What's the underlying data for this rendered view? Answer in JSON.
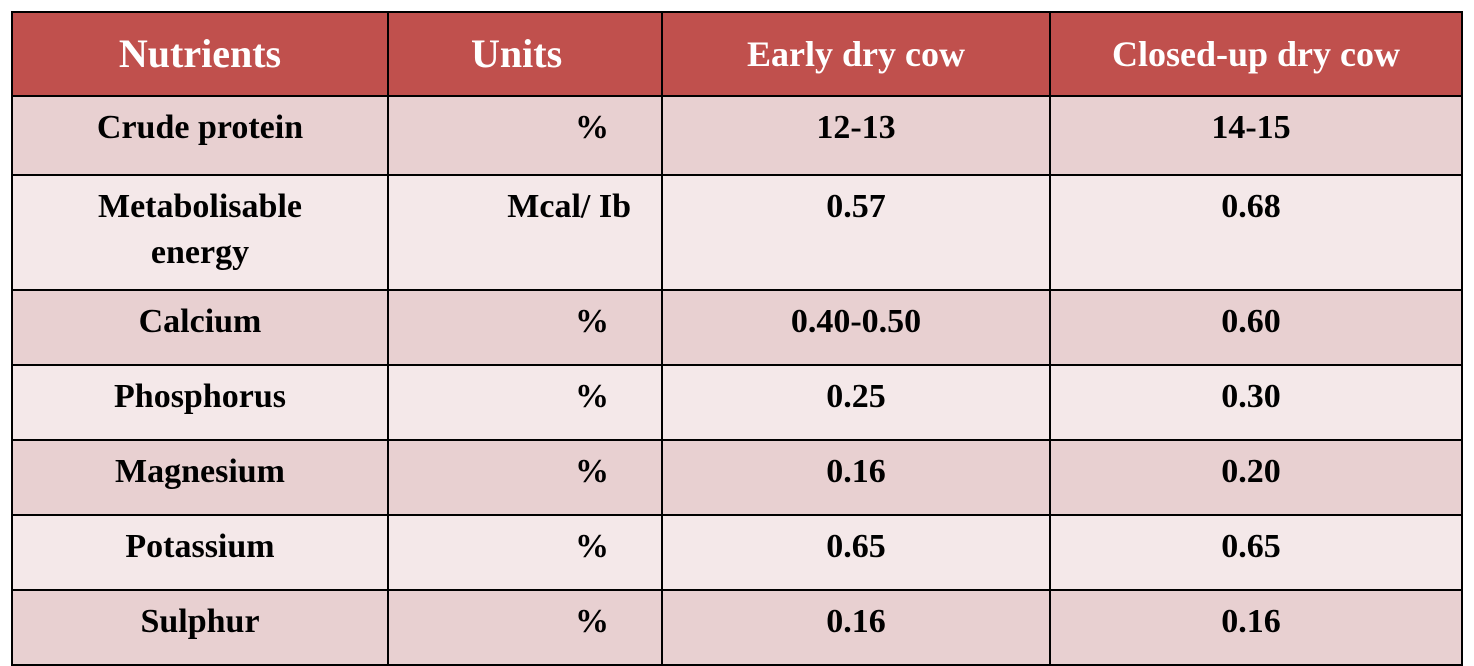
{
  "table": {
    "headers": [
      "Nutrients",
      "Units",
      "Early dry cow",
      "Closed-up dry cow"
    ],
    "rows": [
      [
        "Crude protein",
        "%",
        "12-13",
        "14-15"
      ],
      [
        "Metabolisable energy",
        "Mcal/ Ib",
        "0.57",
        "0.68"
      ],
      [
        "Calcium",
        "%",
        "0.40-0.50",
        "0.60"
      ],
      [
        "Phosphorus",
        "%",
        "0.25",
        "0.30"
      ],
      [
        "Magnesium",
        "%",
        "0.16",
        "0.20"
      ],
      [
        "Potassium",
        "%",
        "0.65",
        "0.65"
      ],
      [
        "Sulphur",
        "%",
        "0.16",
        "0.16"
      ]
    ]
  },
  "colors": {
    "header_bg": "#c0504d",
    "header_text": "#ffffff",
    "row_odd_bg": "#e8d0d1",
    "row_even_bg": "#f4e8e9",
    "border": "#000000"
  }
}
